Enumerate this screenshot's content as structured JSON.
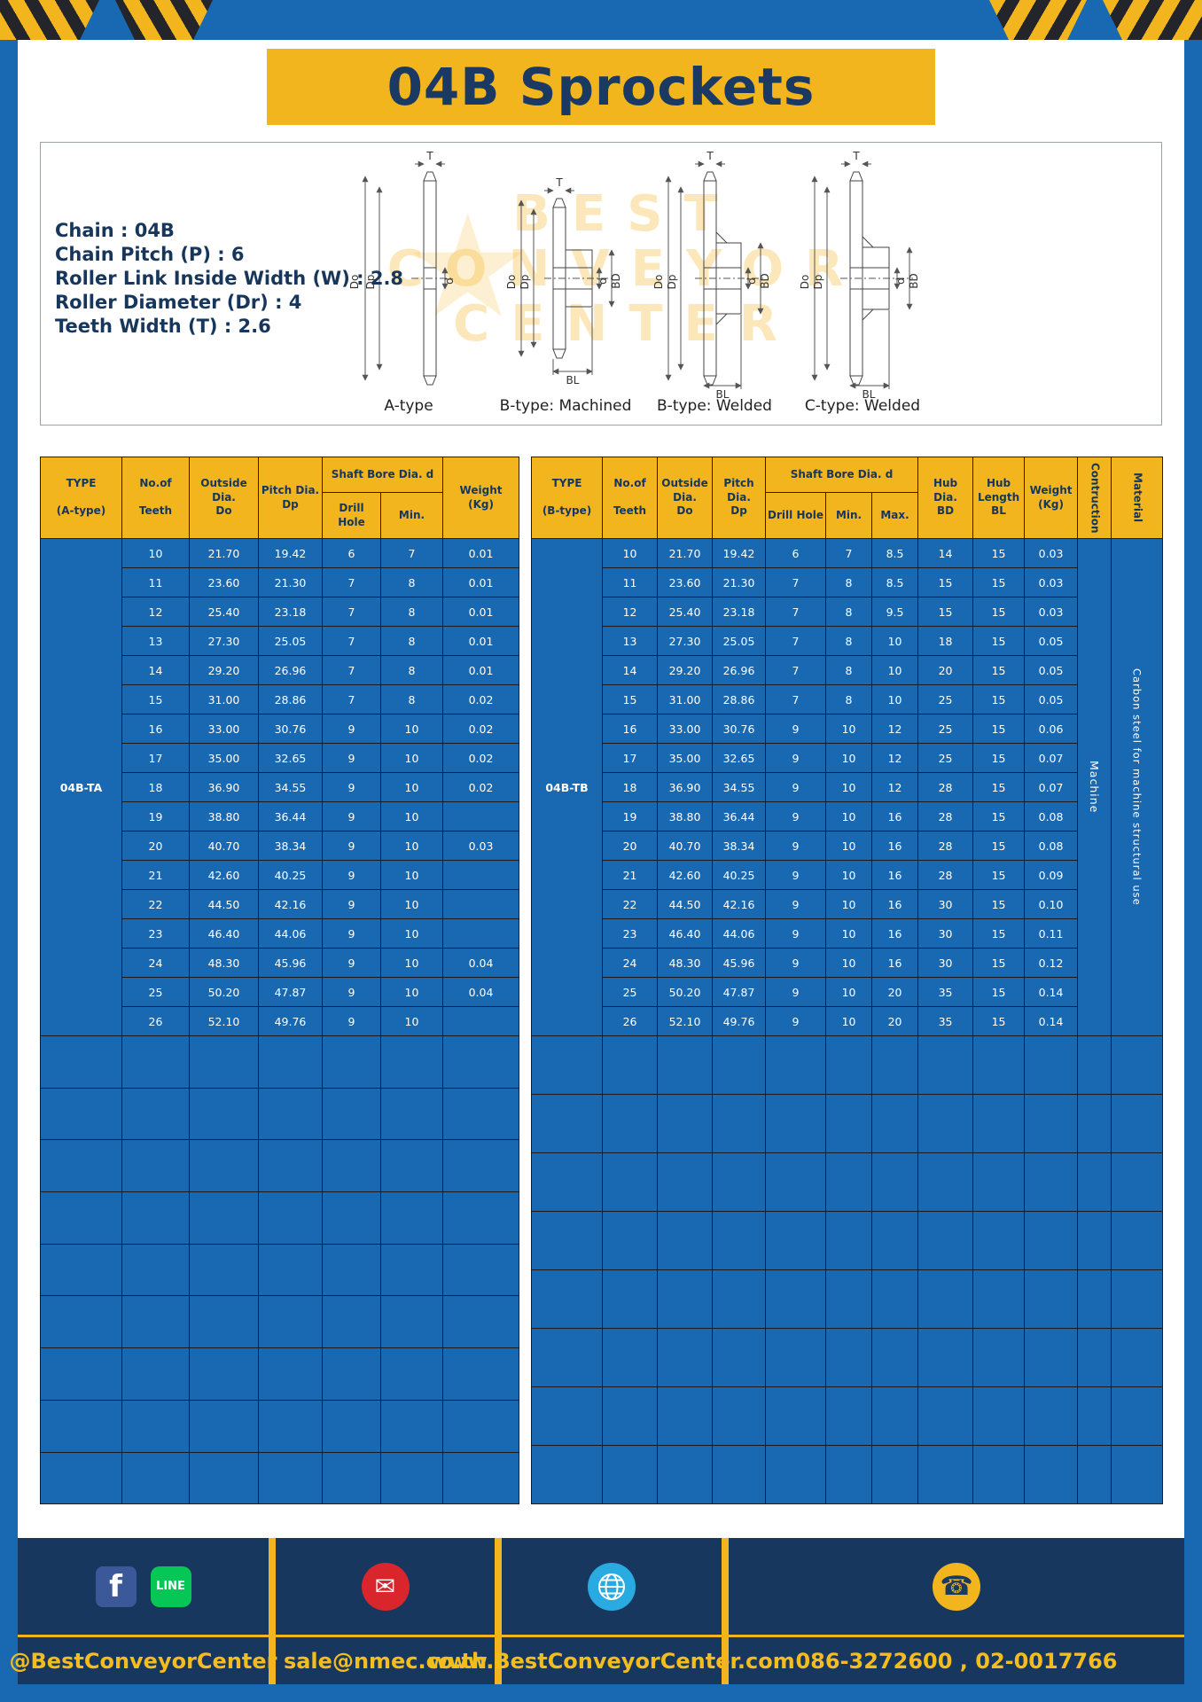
{
  "page": {
    "title": "04B Sprockets"
  },
  "specs": {
    "lines": [
      "Chain : 04B",
      "Chain Pitch (P) : 6",
      "Roller Link Inside Width (W) : 2.8",
      "Roller Diameter (Dr) : 4",
      "Teeth Width (T) : 2.6"
    ]
  },
  "diagram": {
    "captions": [
      "A-type",
      "B-type: Machined",
      "B-type: Welded",
      "C-type: Welded"
    ],
    "dims": {
      "T": "T",
      "Do": "Do",
      "Dp": "Dp",
      "d": "d",
      "BD": "BD",
      "BL": "BL"
    },
    "watermark": {
      "line1": "BEST",
      "line2": "CONVEYOR",
      "line3": "CENTER"
    }
  },
  "tableA": {
    "headers": {
      "type": "TYPE\n\n(A-type)",
      "teeth": "No.of\n\nTeeth",
      "outside": "Outside\nDia.\nDo",
      "pitch": "Pitch Dia.\nDp",
      "shaft_bore": "Shaft Bore Dia. d",
      "drill": "Drill Hole",
      "min": "Min.",
      "weight": "Weight\n(Kg)"
    },
    "type_value": "04B-TA",
    "rows": [
      [
        "10",
        "21.70",
        "19.42",
        "6",
        "7",
        "0.01"
      ],
      [
        "11",
        "23.60",
        "21.30",
        "7",
        "8",
        "0.01"
      ],
      [
        "12",
        "25.40",
        "23.18",
        "7",
        "8",
        "0.01"
      ],
      [
        "13",
        "27.30",
        "25.05",
        "7",
        "8",
        "0.01"
      ],
      [
        "14",
        "29.20",
        "26.96",
        "7",
        "8",
        "0.01"
      ],
      [
        "15",
        "31.00",
        "28.86",
        "7",
        "8",
        "0.02"
      ],
      [
        "16",
        "33.00",
        "30.76",
        "9",
        "10",
        "0.02"
      ],
      [
        "17",
        "35.00",
        "32.65",
        "9",
        "10",
        "0.02"
      ],
      [
        "18",
        "36.90",
        "34.55",
        "9",
        "10",
        "0.02"
      ],
      [
        "19",
        "38.80",
        "36.44",
        "9",
        "10",
        ""
      ],
      [
        "20",
        "40.70",
        "38.34",
        "9",
        "10",
        "0.03"
      ],
      [
        "21",
        "42.60",
        "40.25",
        "9",
        "10",
        ""
      ],
      [
        "22",
        "44.50",
        "42.16",
        "9",
        "10",
        ""
      ],
      [
        "23",
        "46.40",
        "44.06",
        "9",
        "10",
        ""
      ],
      [
        "24",
        "48.30",
        "45.96",
        "9",
        "10",
        "0.04"
      ],
      [
        "25",
        "50.20",
        "47.87",
        "9",
        "10",
        "0.04"
      ],
      [
        "26",
        "52.10",
        "49.76",
        "9",
        "10",
        ""
      ]
    ],
    "empty_rows": 9
  },
  "tableB": {
    "headers": {
      "type": "TYPE\n\n(B-type)",
      "teeth": "No.of\n\nTeeth",
      "outside": "Outside\nDia.\nDo",
      "pitch": "Pitch Dia.\nDp",
      "shaft_bore": "Shaft Bore Dia. d",
      "drill": "Drill Hole",
      "min": "Min.",
      "max": "Max.",
      "hub_dia": "Hub Dia.\nBD",
      "hub_len": "Hub\nLength\nBL",
      "weight": "Weight\n(Kg)",
      "construction": "Contruction",
      "material": "Material"
    },
    "type_value": "04B-TB",
    "construction_value": "Machine",
    "material_value": "Carbon steel for machine structural use",
    "rows": [
      [
        "10",
        "21.70",
        "19.42",
        "6",
        "7",
        "8.5",
        "14",
        "15",
        "0.03"
      ],
      [
        "11",
        "23.60",
        "21.30",
        "7",
        "8",
        "8.5",
        "15",
        "15",
        "0.03"
      ],
      [
        "12",
        "25.40",
        "23.18",
        "7",
        "8",
        "9.5",
        "15",
        "15",
        "0.03"
      ],
      [
        "13",
        "27.30",
        "25.05",
        "7",
        "8",
        "10",
        "18",
        "15",
        "0.05"
      ],
      [
        "14",
        "29.20",
        "26.96",
        "7",
        "8",
        "10",
        "20",
        "15",
        "0.05"
      ],
      [
        "15",
        "31.00",
        "28.86",
        "7",
        "8",
        "10",
        "25",
        "15",
        "0.05"
      ],
      [
        "16",
        "33.00",
        "30.76",
        "9",
        "10",
        "12",
        "25",
        "15",
        "0.06"
      ],
      [
        "17",
        "35.00",
        "32.65",
        "9",
        "10",
        "12",
        "25",
        "15",
        "0.07"
      ],
      [
        "18",
        "36.90",
        "34.55",
        "9",
        "10",
        "12",
        "28",
        "15",
        "0.07"
      ],
      [
        "19",
        "38.80",
        "36.44",
        "9",
        "10",
        "16",
        "28",
        "15",
        "0.08"
      ],
      [
        "20",
        "40.70",
        "38.34",
        "9",
        "10",
        "16",
        "28",
        "15",
        "0.08"
      ],
      [
        "21",
        "42.60",
        "40.25",
        "9",
        "10",
        "16",
        "28",
        "15",
        "0.09"
      ],
      [
        "22",
        "44.50",
        "42.16",
        "9",
        "10",
        "16",
        "30",
        "15",
        "0.10"
      ],
      [
        "23",
        "46.40",
        "44.06",
        "9",
        "10",
        "16",
        "30",
        "15",
        "0.11"
      ],
      [
        "24",
        "48.30",
        "45.96",
        "9",
        "10",
        "16",
        "30",
        "15",
        "0.12"
      ],
      [
        "25",
        "50.20",
        "47.87",
        "9",
        "10",
        "20",
        "35",
        "15",
        "0.14"
      ],
      [
        "26",
        "52.10",
        "49.76",
        "9",
        "10",
        "20",
        "35",
        "15",
        "0.14"
      ]
    ],
    "empty_rows": 8
  },
  "footer": {
    "items": [
      {
        "label": "@BestConveyorCenter"
      },
      {
        "label": "sale@nmec.co.th"
      },
      {
        "label": "www.BestConveyorCenter.com"
      },
      {
        "label": "086-3272600 , 02-0017766"
      }
    ],
    "facebook_letter": "f",
    "line_icon_text": "LINE",
    "icons": {
      "email_glyph": "✉",
      "phone_glyph": "☎",
      "star_glyph": "★"
    }
  },
  "colors": {
    "frame_blue": "#1968b2",
    "yellow": "#f2b51d",
    "navy": "#17365c",
    "footer_navy": "#18375f",
    "facebook_blue": "#3b5998",
    "line_green": "#06c755",
    "email_red": "#d8262c",
    "globe_blue": "#29abe2"
  }
}
